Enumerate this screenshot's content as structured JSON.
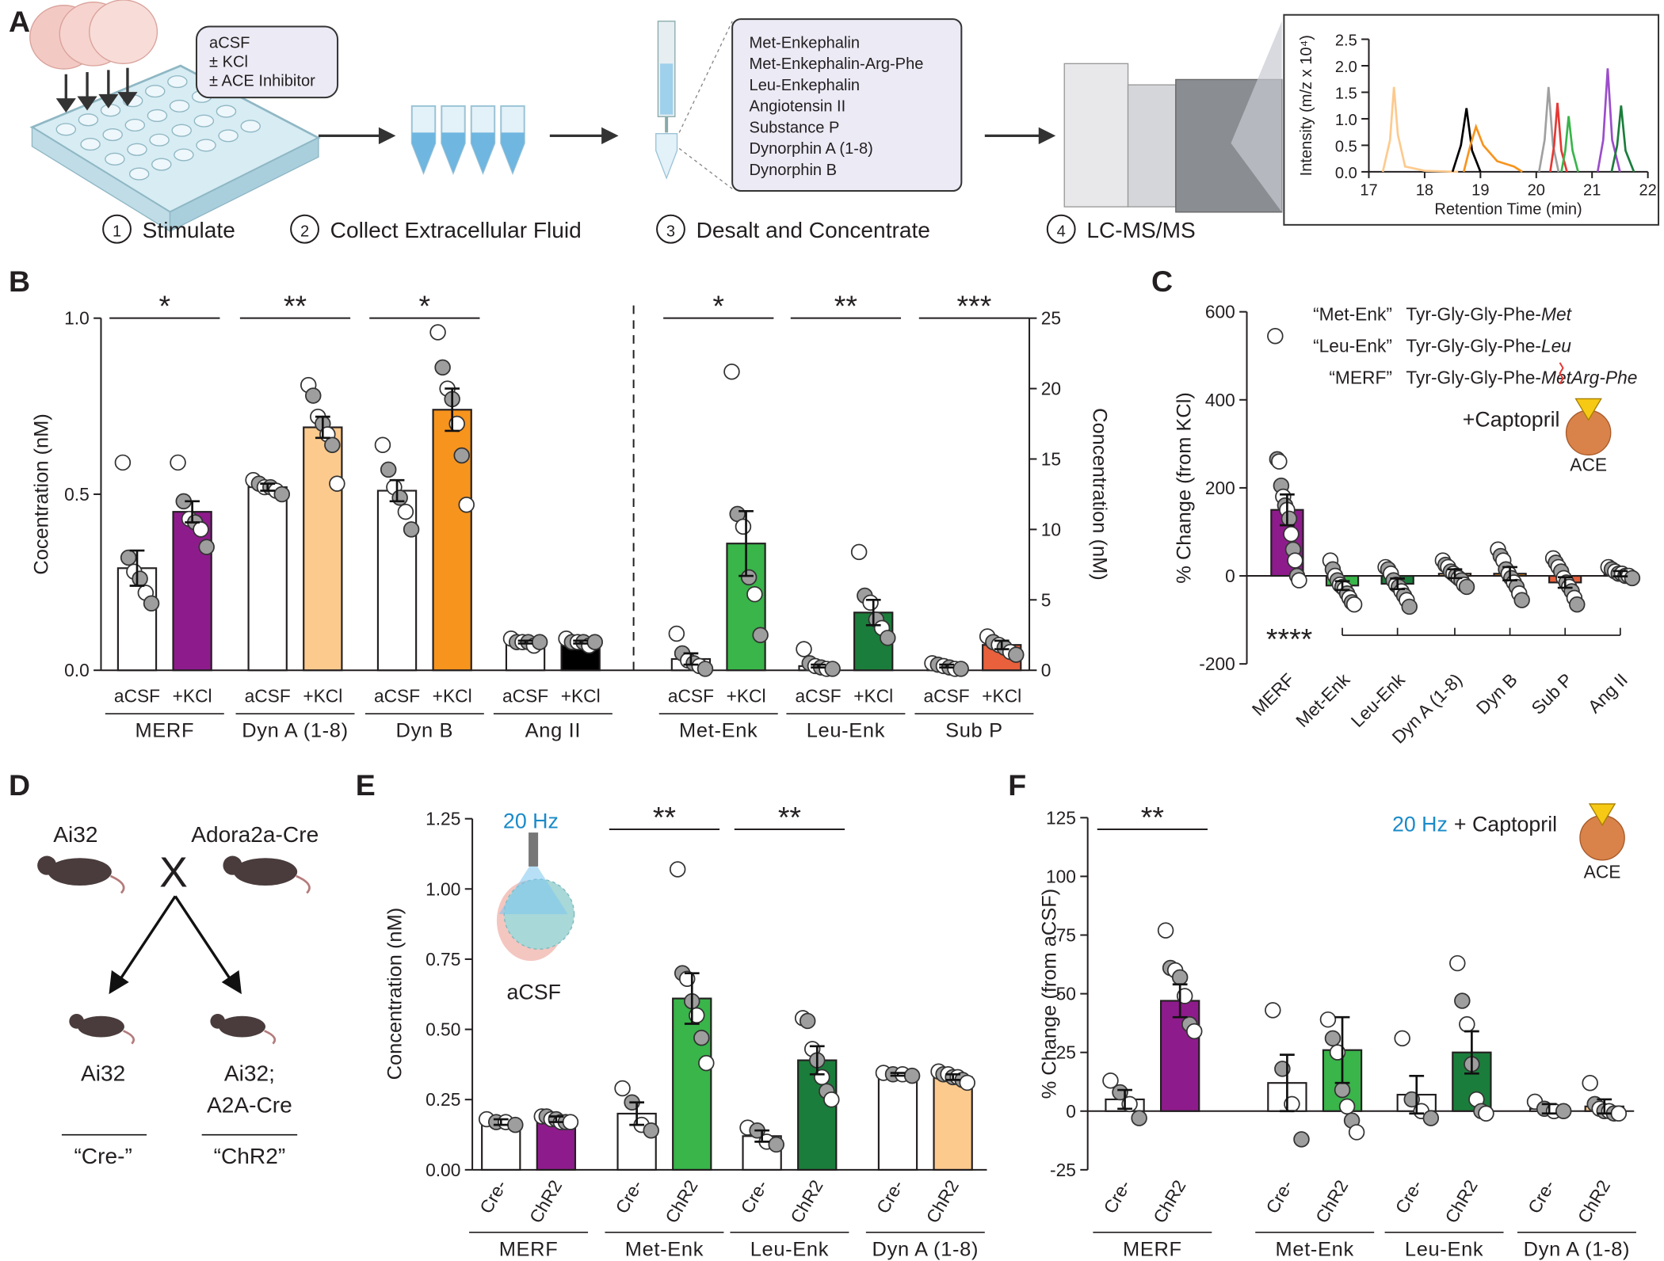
{
  "diagram_a": {
    "label": "A",
    "conditions": [
      "aCSF",
      "± KCl",
      "± ACE Inhibitor"
    ],
    "peptides": [
      "Met-Enkephalin",
      "Met-Enkephalin-Arg-Phe",
      "Leu-Enkephalin",
      "Angiotensin II",
      "Substance P",
      "Dynorphin A (1-8)",
      "Dynorphin B"
    ],
    "steps": [
      {
        "number": 1,
        "label": "Stimulate"
      },
      {
        "number": 2,
        "label": "Collect Extracellular Fluid"
      },
      {
        "number": 3,
        "label": "Desalt and Concentrate"
      },
      {
        "number": 4,
        "label": "LC-MS/MS"
      }
    ]
  },
  "diagram_d": {
    "label": "D",
    "parents": [
      "Ai32",
      "Adora2a-Cre"
    ],
    "cross": "X",
    "offspring": [
      {
        "lines": [
          "Ai32"
        ],
        "group": "“Cre-”"
      },
      {
        "lines": [
          "Ai32;",
          "A2A-Cre"
        ],
        "group": "“ChR2”"
      }
    ]
  },
  "chart_data": [
    {
      "type": "line",
      "xlabel": "Retention Time (min)",
      "ylabel": "Intensity (m/z x 10⁴)",
      "xlim": [
        17,
        22
      ],
      "xticks": [
        17,
        18,
        19,
        20,
        21,
        22
      ],
      "ylim": [
        0,
        2.5
      ],
      "yticks": [
        {
          "value": 0,
          "label": "0.0"
        },
        {
          "value": 0.5,
          "label": "0.5"
        },
        {
          "value": 1,
          "label": "1.0"
        },
        {
          "value": 1.5,
          "label": "1.5"
        },
        {
          "value": 2,
          "label": "2.0"
        },
        {
          "value": 2.5,
          "label": "2.5"
        }
      ],
      "series": [
        {
          "color": "#fdca8e",
          "x": [
            17.25,
            17.38,
            17.45,
            17.52,
            17.65,
            18.0,
            18.6
          ],
          "values": [
            0,
            0.6,
            1.6,
            0.7,
            0.1,
            0.02,
            0
          ]
        },
        {
          "color": "#000000",
          "x": [
            18.5,
            18.65,
            18.75,
            18.85,
            19.0
          ],
          "values": [
            0,
            0.5,
            1.2,
            0.4,
            0
          ]
        },
        {
          "color": "#f7941d",
          "x": [
            18.7,
            18.82,
            18.92,
            19.05,
            19.3,
            19.6,
            19.75
          ],
          "values": [
            0,
            0.5,
            0.85,
            0.5,
            0.2,
            0.1,
            0
          ]
        },
        {
          "color": "#a0a0a0",
          "x": [
            20.05,
            20.15,
            20.22,
            20.3,
            20.4
          ],
          "values": [
            0,
            0.6,
            1.6,
            0.5,
            0
          ]
        },
        {
          "color": "#e53935",
          "x": [
            20.25,
            20.32,
            20.38,
            20.45,
            20.55
          ],
          "values": [
            0,
            0.5,
            1.3,
            0.4,
            0
          ]
        },
        {
          "color": "#39b54a",
          "x": [
            20.45,
            20.52,
            20.58,
            20.65,
            20.75
          ],
          "values": [
            0,
            0.4,
            1.05,
            0.4,
            0
          ]
        },
        {
          "color": "#9b4dca",
          "x": [
            21.1,
            21.2,
            21.28,
            21.36,
            21.5
          ],
          "values": [
            0,
            0.6,
            1.95,
            0.6,
            0
          ]
        },
        {
          "color": "#1b7d3b",
          "x": [
            21.35,
            21.45,
            21.52,
            21.6,
            21.75
          ],
          "values": [
            0,
            0.5,
            1.25,
            0.4,
            0
          ]
        }
      ]
    },
    {
      "type": "bar",
      "panel": "B",
      "ylabel": "Cocentration (nM)",
      "y2label": "Concentration (nM)",
      "ylim": [
        0,
        1
      ],
      "yticks": [
        {
          "value": 0,
          "label": "0.0"
        },
        {
          "value": 0.5,
          "label": "0.5"
        },
        {
          "value": 1,
          "label": "1.0"
        }
      ],
      "y2lim": [
        0,
        25
      ],
      "y2ticks": [
        0,
        5,
        10,
        15,
        20,
        25
      ],
      "categories": [
        "aCSF",
        "+KCl"
      ],
      "point_fills": [
        "#ffffff",
        "#9e9e9e"
      ],
      "groups": [
        {
          "name": "MERF",
          "colors": [
            "#ffffff",
            "#8e1b8c"
          ],
          "values": [
            0.29,
            0.45
          ],
          "errors": [
            0.05,
            0.03
          ],
          "points": [
            [
              0.59,
              0.32,
              0.28,
              0.26,
              0.22,
              0.19
            ],
            [
              0.59,
              0.48,
              0.43,
              0.42,
              0.4,
              0.35
            ]
          ],
          "significance": "*"
        },
        {
          "name": "Dyn A (1-8)",
          "colors": [
            "#ffffff",
            "#fdca8e"
          ],
          "values": [
            0.52,
            0.69
          ],
          "errors": [
            0.01,
            0.03
          ],
          "points": [
            [
              0.54,
              0.53,
              0.52,
              0.52,
              0.51,
              0.5
            ],
            [
              0.81,
              0.78,
              0.72,
              0.7,
              0.67,
              0.64,
              0.53
            ]
          ],
          "significance": "**"
        },
        {
          "name": "Dyn B",
          "colors": [
            "#ffffff",
            "#f7941d"
          ],
          "values": [
            0.51,
            0.74
          ],
          "errors": [
            0.03,
            0.06
          ],
          "points": [
            [
              0.64,
              0.57,
              0.52,
              0.49,
              0.45,
              0.4
            ],
            [
              0.96,
              0.86,
              0.8,
              0.77,
              0.7,
              0.61,
              0.47
            ]
          ],
          "significance": "*"
        },
        {
          "name": "Ang II",
          "colors": [
            "#ffffff",
            "#000000"
          ],
          "values": [
            0.08,
            0.08
          ],
          "errors": [
            0.004,
            0.004
          ],
          "points": [
            [
              0.09,
              0.08,
              0.08,
              0.08,
              0.07,
              0.08
            ],
            [
              0.09,
              0.08,
              0.08,
              0.08,
              0.07,
              0.08
            ]
          ]
        },
        {
          "name": "Met-Enk",
          "axis": "y2",
          "colors": [
            "#ffffff",
            "#39b54a"
          ],
          "values": [
            0.8,
            9.0
          ],
          "errors": [
            0.4,
            2.3
          ],
          "points": [
            [
              2.6,
              1.2,
              0.7,
              0.5,
              0.3,
              0.1
            ],
            [
              21.2,
              11.1,
              10.2,
              6.6,
              5.4,
              2.5
            ]
          ],
          "significance": "*"
        },
        {
          "name": "Leu-Enk",
          "axis": "y2",
          "colors": [
            "#ffffff",
            "#1b7d3b"
          ],
          "values": [
            0.3,
            4.1
          ],
          "errors": [
            0.1,
            0.9
          ],
          "points": [
            [
              1.5,
              0.5,
              0.3,
              0.2,
              0.1,
              0.1
            ],
            [
              8.4,
              5.3,
              4.8,
              3.6,
              3.0,
              2.3
            ]
          ],
          "significance": "**"
        },
        {
          "name": "Sub P",
          "axis": "y2",
          "colors": [
            "#ffffff",
            "#e8603c"
          ],
          "values": [
            0.3,
            1.8
          ],
          "errors": [
            0.1,
            0.3
          ],
          "points": [
            [
              0.5,
              0.4,
              0.3,
              0.2,
              0.1,
              0.1
            ],
            [
              2.4,
              2.0,
              1.8,
              1.6,
              1.3,
              1.1
            ]
          ],
          "significance": "***"
        }
      ]
    },
    {
      "type": "bar",
      "panel": "C",
      "ylabel": "% Change (from  KCl)",
      "ylim": [
        -200,
        600
      ],
      "yticks": [
        -200,
        0,
        200,
        400,
        600
      ],
      "categories": [
        "MERF",
        "Met-Enk",
        "Leu-Enk",
        "Dyn A (1-8)",
        "Dyn B",
        "Sub P",
        "Ang II"
      ],
      "colors": [
        "#8e1b8c",
        "#39b54a",
        "#1b7d3b",
        "#fdca8e",
        "#f7941d",
        "#e8603c",
        "#000000"
      ],
      "values": [
        150,
        -22,
        -18,
        5,
        5,
        -15,
        5
      ],
      "errors": [
        35,
        10,
        12,
        10,
        15,
        12,
        6
      ],
      "point_fills": [
        "#ffffff",
        "#9e9e9e"
      ],
      "points": [
        [
          545,
          265,
          260,
          205,
          180,
          160,
          150,
          130,
          95,
          60,
          35,
          0,
          -10
        ],
        [
          35,
          15,
          0,
          -10,
          -20,
          -25,
          -30,
          -40,
          -50,
          -60,
          -65
        ],
        [
          20,
          15,
          5,
          -10,
          -20,
          -25,
          -35,
          -45,
          -55,
          -70
        ],
        [
          35,
          25,
          20,
          10,
          5,
          0,
          -5,
          -10,
          -20,
          -25
        ],
        [
          60,
          45,
          35,
          15,
          5,
          -5,
          -15,
          -25,
          -40,
          -55
        ],
        [
          40,
          30,
          20,
          10,
          -5,
          -15,
          -25,
          -35,
          -50,
          -65
        ],
        [
          20,
          15,
          10,
          5,
          5,
          0,
          0,
          -5
        ]
      ],
      "significance": "****",
      "annotations": [
        {
          "label": "“Met-Enk”",
          "sequence": [
            "Tyr-Gly-Gly-Phe-",
            "Met"
          ]
        },
        {
          "label": "“Leu-Enk”",
          "sequence": [
            "Tyr-Gly-Gly-Phe-",
            "Leu"
          ]
        },
        {
          "label": "“MERF”",
          "sequence": [
            "Tyr-Gly-Gly-Phe-",
            "Met",
            "Arg-Phe"
          ]
        }
      ],
      "treatment": "+Captopril",
      "enzyme": "ACE"
    },
    {
      "type": "bar",
      "panel": "E",
      "ylabel": "Concentration (nM)",
      "ylim": [
        0,
        1.25
      ],
      "yticks": [
        {
          "value": 0,
          "label": "0.00"
        },
        {
          "value": 0.25,
          "label": "0.25"
        },
        {
          "value": 0.5,
          "label": "0.50"
        },
        {
          "value": 0.75,
          "label": "0.75"
        },
        {
          "value": 1,
          "label": "1.00"
        },
        {
          "value": 1.25,
          "label": "1.25"
        }
      ],
      "categories": [
        "Cre-",
        "ChR2"
      ],
      "point_fills": [
        "#ffffff",
        "#9e9e9e"
      ],
      "stimulus": "20 Hz",
      "stimulus_color": "#1a8ac9",
      "inset_label": "aCSF",
      "groups": [
        {
          "name": "MERF",
          "colors": [
            "#ffffff",
            "#8e1b8c"
          ],
          "values": [
            0.17,
            0.18
          ],
          "errors": [
            0.01,
            0.01
          ],
          "points": [
            [
              0.18,
              0.17,
              0.17,
              0.16
            ],
            [
              0.19,
              0.19,
              0.18,
              0.18,
              0.17,
              0.17,
              0.17
            ]
          ]
        },
        {
          "name": "Met-Enk",
          "colors": [
            "#ffffff",
            "#39b54a"
          ],
          "values": [
            0.2,
            0.61
          ],
          "errors": [
            0.04,
            0.09
          ],
          "points": [
            [
              0.29,
              0.24,
              0.16,
              0.14
            ],
            [
              1.07,
              0.7,
              0.68,
              0.6,
              0.55,
              0.47,
              0.38
            ]
          ],
          "significance": "**"
        },
        {
          "name": "Leu-Enk",
          "colors": [
            "#ffffff",
            "#1b7d3b"
          ],
          "values": [
            0.12,
            0.39
          ],
          "errors": [
            0.02,
            0.05
          ],
          "points": [
            [
              0.15,
              0.14,
              0.1,
              0.09
            ],
            [
              0.54,
              0.53,
              0.43,
              0.39,
              0.33,
              0.28,
              0.25
            ]
          ],
          "significance": "**"
        },
        {
          "name": "Dyn A (1-8)",
          "colors": [
            "#ffffff",
            "#fdca8e"
          ],
          "values": [
            0.34,
            0.33
          ],
          "errors": [
            0.005,
            0.01
          ],
          "points": [
            [
              0.345,
              0.34,
              0.34,
              0.335
            ],
            [
              0.35,
              0.34,
              0.34,
              0.33,
              0.33,
              0.32,
              0.31
            ]
          ]
        }
      ]
    },
    {
      "type": "bar",
      "panel": "F",
      "ylabel": "% Change  (from aCSF)",
      "ylim": [
        -25,
        125
      ],
      "yticks": [
        -25,
        0,
        25,
        50,
        75,
        100,
        125
      ],
      "categories": [
        "Cre-",
        "ChR2"
      ],
      "point_fills": [
        "#ffffff",
        "#9e9e9e"
      ],
      "stimulus": "20 Hz",
      "stimulus_color": "#1a8ac9",
      "treatment": "+ Captopril",
      "enzyme": "ACE",
      "groups": [
        {
          "name": "MERF",
          "colors": [
            "#ffffff",
            "#8e1b8c"
          ],
          "values": [
            5,
            47
          ],
          "errors": [
            4,
            7
          ],
          "points": [
            [
              13,
              8,
              3,
              -3
            ],
            [
              77,
              61,
              60,
              57,
              49,
              37,
              34
            ]
          ],
          "significance": "**"
        },
        {
          "name": "Met-Enk",
          "colors": [
            "#ffffff",
            "#39b54a"
          ],
          "values": [
            12,
            26
          ],
          "errors": [
            12,
            14
          ],
          "points": [
            [
              43,
              18,
              3,
              -12
            ],
            [
              39,
              31,
              25,
              9,
              2,
              -4,
              -9
            ]
          ]
        },
        {
          "name": "Leu-Enk",
          "colors": [
            "#ffffff",
            "#1b7d3b"
          ],
          "values": [
            7,
            25
          ],
          "errors": [
            8,
            9
          ],
          "points": [
            [
              31,
              5,
              0,
              -3
            ],
            [
              63,
              47,
              37,
              20,
              5,
              0,
              -1
            ]
          ]
        },
        {
          "name": "Dyn A (1-8)",
          "colors": [
            "#ffffff",
            "#fdca8e"
          ],
          "values": [
            1,
            2
          ],
          "errors": [
            2,
            3
          ],
          "points": [
            [
              4,
              1,
              0,
              0
            ],
            [
              12,
              3,
              1,
              0,
              0,
              -1,
              -1
            ]
          ]
        }
      ]
    }
  ]
}
